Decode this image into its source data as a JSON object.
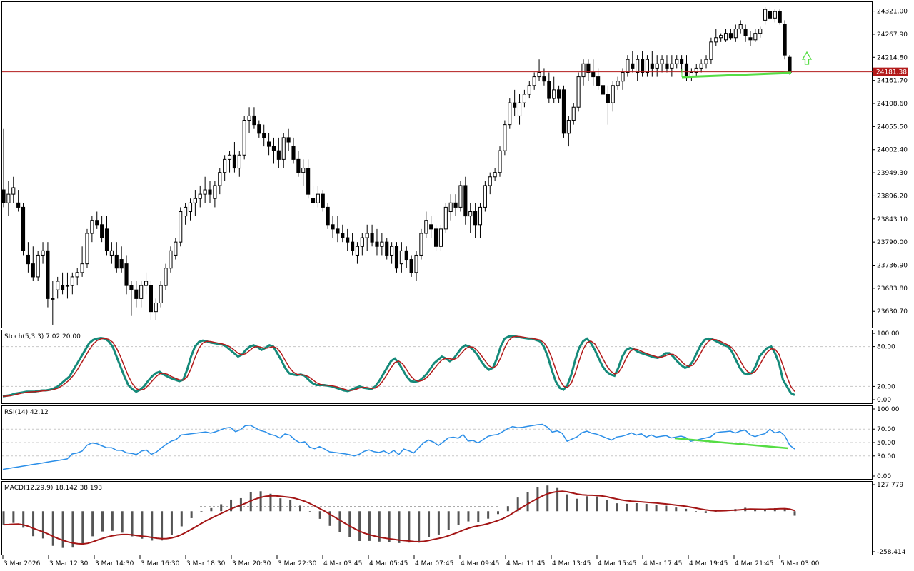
{
  "colors": {
    "background": "#ffffff",
    "frame": "#000000",
    "candle_up_fill": "#ffffff",
    "candle_down_fill": "#000000",
    "price_line": "#b31b1b",
    "stoch_main": "#158a7a",
    "stoch_signal": "#b31b1b",
    "rsi_line": "#2a8ee8",
    "macd_hist": "#555555",
    "macd_signal": "#a31515",
    "annotation_green": "#55dd44"
  },
  "price_pane": {
    "current_price": "24181.38",
    "y_ticks": [
      "24321.00",
      "24267.90",
      "24214.80",
      "24161.70",
      "24108.60",
      "24055.50",
      "24002.40",
      "23949.30",
      "23896.20",
      "23843.10",
      "23790.00",
      "23736.90",
      "23683.80",
      "23630.70"
    ],
    "up_arrow_icon": "up-arrow-icon"
  },
  "stoch_pane": {
    "label": "Stoch(5,3,3) 7.02 20.00",
    "y_ticks": [
      "100.00",
      "80.00",
      "20.00",
      "0.00"
    ],
    "levels": [
      80,
      20
    ]
  },
  "rsi_pane": {
    "label": "RSI(14) 42.12",
    "y_ticks": [
      "100.00",
      "70.00",
      "50.00",
      "30.00",
      "0.00"
    ],
    "levels": [
      70,
      50,
      30
    ]
  },
  "macd_pane": {
    "label": "MACD(12,29,9) 18.142 38.193",
    "y_ticks": [
      "127.779",
      "-258.414"
    ]
  },
  "time_axis": {
    "labels": [
      "3 Mar 2026",
      "3 Mar 12:30",
      "3 Mar 14:30",
      "3 Mar 16:30",
      "3 Mar 18:30",
      "3 Mar 20:30",
      "3 Mar 22:30",
      "4 Mar 03:45",
      "4 Mar 05:45",
      "4 Mar 07:45",
      "4 Mar 09:45",
      "4 Mar 11:45",
      "4 Mar 13:45",
      "4 Mar 15:45",
      "4 Mar 17:45",
      "4 Mar 19:45",
      "4 Mar 21:45",
      "5 Mar 03:00"
    ]
  },
  "chart_data": {
    "type": "candlestick",
    "price_line_value": 24181.38,
    "price_ylim": [
      23595,
      24340
    ],
    "candles": [
      [
        23910,
        24050,
        23870,
        23880
      ],
      [
        23880,
        23930,
        23850,
        23900
      ],
      [
        23900,
        23940,
        23880,
        23915
      ],
      [
        23880,
        23910,
        23860,
        23870
      ],
      [
        23870,
        23880,
        23760,
        23770
      ],
      [
        23760,
        23790,
        23720,
        23740
      ],
      [
        23740,
        23780,
        23700,
        23710
      ],
      [
        23710,
        23770,
        23700,
        23760
      ],
      [
        23760,
        23790,
        23740,
        23770
      ],
      [
        23770,
        23790,
        23640,
        23660
      ],
      [
        23660,
        23700,
        23600,
        23660
      ],
      [
        23680,
        23710,
        23660,
        23700
      ],
      [
        23690,
        23720,
        23670,
        23680
      ],
      [
        23690,
        23720,
        23660,
        23690
      ],
      [
        23690,
        23720,
        23670,
        23710
      ],
      [
        23710,
        23730,
        23690,
        23720
      ],
      [
        23720,
        23780,
        23710,
        23740
      ],
      [
        23740,
        23820,
        23730,
        23810
      ],
      [
        23810,
        23850,
        23790,
        23840
      ],
      [
        23840,
        23860,
        23820,
        23830
      ],
      [
        23830,
        23850,
        23790,
        23800
      ],
      [
        23820,
        23850,
        23760,
        23770
      ],
      [
        23760,
        23790,
        23740,
        23770
      ],
      [
        23760,
        23790,
        23720,
        23730
      ],
      [
        23750,
        23780,
        23720,
        23730
      ],
      [
        23740,
        23760,
        23670,
        23690
      ],
      [
        23690,
        23700,
        23620,
        23680
      ],
      [
        23680,
        23700,
        23640,
        23660
      ],
      [
        23660,
        23700,
        23640,
        23690
      ],
      [
        23690,
        23720,
        23670,
        23700
      ],
      [
        23690,
        23700,
        23610,
        23630
      ],
      [
        23630,
        23660,
        23610,
        23650
      ],
      [
        23650,
        23700,
        23640,
        23690
      ],
      [
        23690,
        23740,
        23680,
        23730
      ],
      [
        23730,
        23780,
        23720,
        23770
      ],
      [
        23760,
        23800,
        23750,
        23790
      ],
      [
        23790,
        23870,
        23780,
        23860
      ],
      [
        23850,
        23880,
        23830,
        23870
      ],
      [
        23860,
        23890,
        23840,
        23880
      ],
      [
        23880,
        23910,
        23850,
        23890
      ],
      [
        23890,
        23920,
        23870,
        23900
      ],
      [
        23900,
        23940,
        23880,
        23910
      ],
      [
        23910,
        23930,
        23880,
        23900
      ],
      [
        23890,
        23930,
        23870,
        23920
      ],
      [
        23920,
        23960,
        23900,
        23950
      ],
      [
        23950,
        23990,
        23930,
        23980
      ],
      [
        23980,
        24000,
        23950,
        23990
      ],
      [
        23990,
        24020,
        23950,
        23960
      ],
      [
        23960,
        24000,
        23940,
        23990
      ],
      [
        23990,
        24080,
        23980,
        24070
      ],
      [
        24070,
        24100,
        24040,
        24080
      ],
      [
        24080,
        24100,
        24050,
        24060
      ],
      [
        24060,
        24070,
        24030,
        24040
      ],
      [
        24040,
        24060,
        24010,
        24030
      ],
      [
        24020,
        24040,
        23990,
        24010
      ],
      [
        24010,
        24030,
        23970,
        24000
      ],
      [
        24000,
        24030,
        23960,
        23980
      ],
      [
        23980,
        24040,
        23960,
        24030
      ],
      [
        24030,
        24050,
        24000,
        24020
      ],
      [
        24010,
        24030,
        23970,
        23980
      ],
      [
        23980,
        24000,
        23940,
        23950
      ],
      [
        23950,
        23980,
        23920,
        23960
      ],
      [
        23960,
        23980,
        23890,
        23900
      ],
      [
        23890,
        23920,
        23870,
        23880
      ],
      [
        23880,
        23920,
        23870,
        23900
      ],
      [
        23900,
        23910,
        23860,
        23870
      ],
      [
        23870,
        23880,
        23820,
        23830
      ],
      [
        23830,
        23850,
        23800,
        23820
      ],
      [
        23820,
        23850,
        23790,
        23810
      ],
      [
        23810,
        23830,
        23790,
        23800
      ],
      [
        23800,
        23820,
        23770,
        23790
      ],
      [
        23790,
        23810,
        23760,
        23770
      ],
      [
        23760,
        23790,
        23740,
        23780
      ],
      [
        23780,
        23810,
        23760,
        23800
      ],
      [
        23800,
        23830,
        23770,
        23810
      ],
      [
        23810,
        23830,
        23780,
        23790
      ],
      [
        23790,
        23820,
        23760,
        23780
      ],
      [
        23780,
        23810,
        23760,
        23790
      ],
      [
        23790,
        23800,
        23750,
        23760
      ],
      [
        23760,
        23790,
        23740,
        23780
      ],
      [
        23780,
        23790,
        23720,
        23730
      ],
      [
        23740,
        23790,
        23720,
        23770
      ],
      [
        23770,
        23780,
        23730,
        23750
      ],
      [
        23750,
        23760,
        23710,
        23720
      ],
      [
        23720,
        23770,
        23700,
        23760
      ],
      [
        23760,
        23820,
        23750,
        23810
      ],
      [
        23810,
        23860,
        23800,
        23840
      ],
      [
        23830,
        23850,
        23800,
        23820
      ],
      [
        23820,
        23830,
        23770,
        23780
      ],
      [
        23780,
        23830,
        23770,
        23820
      ],
      [
        23820,
        23880,
        23810,
        23870
      ],
      [
        23860,
        23900,
        23840,
        23880
      ],
      [
        23880,
        23900,
        23850,
        23870
      ],
      [
        23870,
        23930,
        23860,
        23920
      ],
      [
        23920,
        23940,
        23830,
        23850
      ],
      [
        23850,
        23880,
        23810,
        23860
      ],
      [
        23860,
        23880,
        23800,
        23830
      ],
      [
        23830,
        23880,
        23800,
        23870
      ],
      [
        23870,
        23930,
        23860,
        23920
      ],
      [
        23920,
        23950,
        23900,
        23940
      ],
      [
        23940,
        23960,
        23930,
        23950
      ],
      [
        23950,
        24010,
        23940,
        24000
      ],
      [
        24000,
        24070,
        23990,
        24060
      ],
      [
        24060,
        24120,
        24050,
        24110
      ],
      [
        24110,
        24140,
        24080,
        24100
      ],
      [
        24080,
        24130,
        24060,
        24110
      ],
      [
        24110,
        24140,
        24100,
        24130
      ],
      [
        24130,
        24160,
        24120,
        24150
      ],
      [
        24150,
        24180,
        24140,
        24170
      ],
      [
        24170,
        24210,
        24160,
        24180
      ],
      [
        24170,
        24190,
        24150,
        24160
      ],
      [
        24160,
        24180,
        24110,
        24120
      ],
      [
        24120,
        24170,
        24110,
        24140
      ],
      [
        24140,
        24150,
        24110,
        24120
      ],
      [
        24140,
        24150,
        24030,
        24040
      ],
      [
        24040,
        24080,
        24010,
        24070
      ],
      [
        24070,
        24110,
        24060,
        24100
      ],
      [
        24100,
        24180,
        24090,
        24170
      ],
      [
        24170,
        24210,
        24150,
        24200
      ],
      [
        24200,
        24210,
        24160,
        24180
      ],
      [
        24180,
        24210,
        24150,
        24170
      ],
      [
        24170,
        24190,
        24140,
        24150
      ],
      [
        24150,
        24170,
        24120,
        24130
      ],
      [
        24130,
        24150,
        24060,
        24110
      ],
      [
        24110,
        24160,
        24090,
        24150
      ],
      [
        24150,
        24170,
        24140,
        24160
      ],
      [
        24160,
        24190,
        24140,
        24180
      ],
      [
        24180,
        24220,
        24170,
        24210
      ],
      [
        24200,
        24230,
        24180,
        24190
      ],
      [
        24180,
        24220,
        24160,
        24210
      ],
      [
        24210,
        24230,
        24170,
        24180
      ],
      [
        24180,
        24220,
        24170,
        24210
      ],
      [
        24200,
        24230,
        24170,
        24190
      ],
      [
        24190,
        24220,
        24170,
        24200
      ],
      [
        24200,
        24220,
        24180,
        24210
      ],
      [
        24200,
        24220,
        24180,
        24190
      ],
      [
        24190,
        24220,
        24170,
        24200
      ],
      [
        24200,
        24220,
        24190,
        24210
      ],
      [
        24210,
        24220,
        24180,
        24200
      ],
      [
        24200,
        24220,
        24160,
        24170
      ],
      [
        24170,
        24190,
        24160,
        24180
      ],
      [
        24180,
        24200,
        24170,
        24190
      ],
      [
        24190,
        24210,
        24180,
        24200
      ],
      [
        24200,
        24220,
        24190,
        24210
      ],
      [
        24210,
        24260,
        24200,
        24250
      ],
      [
        24250,
        24280,
        24240,
        24260
      ],
      [
        24260,
        24270,
        24250,
        24265
      ],
      [
        24255,
        24280,
        24250,
        24270
      ],
      [
        24270,
        24280,
        24255,
        24260
      ],
      [
        24260,
        24290,
        24250,
        24280
      ],
      [
        24280,
        24300,
        24270,
        24290
      ],
      [
        24280,
        24290,
        24250,
        24265
      ],
      [
        24260,
        24275,
        24240,
        24255
      ],
      [
        24255,
        24280,
        24250,
        24270
      ],
      [
        24270,
        24285,
        24260,
        24280
      ],
      [
        24300,
        24330,
        24290,
        24325
      ],
      [
        24320,
        24330,
        24300,
        24305
      ],
      [
        24305,
        24325,
        24295,
        24320
      ],
      [
        24320,
        24325,
        24290,
        24295
      ],
      [
        24290,
        24300,
        24210,
        24220
      ],
      [
        24215,
        24220,
        24175,
        24180
      ]
    ],
    "stoch_main": [
      5,
      6,
      7,
      9,
      10,
      11,
      12,
      12,
      12,
      13,
      14,
      14,
      15,
      17,
      20,
      25,
      30,
      35,
      45,
      55,
      65,
      75,
      85,
      90,
      92,
      93,
      92,
      88,
      80,
      65,
      50,
      35,
      22,
      16,
      12,
      15,
      20,
      28,
      35,
      40,
      42,
      38,
      35,
      32,
      30,
      28,
      30,
      45,
      65,
      80,
      87,
      89,
      88,
      86,
      85,
      84,
      83,
      80,
      75,
      70,
      65,
      68,
      75,
      80,
      82,
      79,
      75,
      78,
      82,
      80,
      70,
      60,
      48,
      40,
      38,
      37,
      38,
      36,
      30,
      25,
      22,
      22,
      22,
      21,
      20,
      18,
      16,
      14,
      13,
      15,
      18,
      20,
      18,
      17,
      16,
      20,
      28,
      38,
      48,
      58,
      62,
      55,
      45,
      35,
      28,
      27,
      28,
      32,
      38,
      46,
      55,
      60,
      65,
      62,
      58,
      62,
      70,
      78,
      82,
      80,
      75,
      68,
      58,
      50,
      45,
      48,
      62,
      80,
      92,
      95,
      96,
      95,
      94,
      93,
      92,
      92,
      90,
      88,
      80,
      65,
      45,
      28,
      18,
      15,
      22,
      38,
      60,
      78,
      88,
      92,
      85,
      75,
      62,
      50,
      42,
      38,
      36,
      48,
      65,
      75,
      78,
      76,
      72,
      70,
      68,
      66,
      64,
      63,
      65,
      70,
      70,
      65,
      58,
      52,
      48,
      50,
      58,
      70,
      82,
      90,
      92,
      91,
      88,
      85,
      82,
      80,
      72,
      60,
      48,
      40,
      38,
      40,
      50,
      65,
      72,
      78,
      80,
      70,
      55,
      30,
      20,
      10,
      7
    ]
  }
}
